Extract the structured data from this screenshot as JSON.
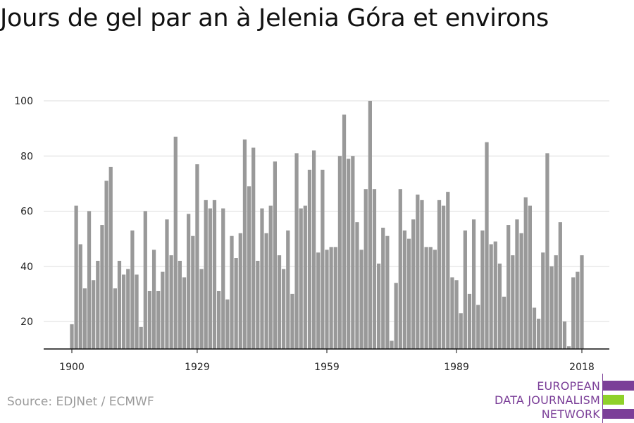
{
  "title": "Jours de gel par an à Jelenia Góra et environs",
  "source": "Source: EDJNet / ECMWF",
  "logo": {
    "lines": [
      "EUROPEAN",
      "DATA JOURNALISM",
      "NETWORK"
    ],
    "colors": {
      "purple": "#7b3f98",
      "green": "#8fd12a"
    }
  },
  "chart_data": {
    "type": "bar",
    "title": "Jours de gel par an à Jelenia Góra et environs",
    "xlabel": "",
    "ylabel": "",
    "bar_color": "#999999",
    "x_start": 1900,
    "x_ticks": [
      1900,
      1929,
      1959,
      1989,
      2018
    ],
    "y_ticks": [
      20,
      40,
      60,
      80,
      100
    ],
    "ylim": [
      10,
      100
    ],
    "grid": true,
    "values": [
      19,
      62,
      48,
      32,
      60,
      35,
      42,
      55,
      71,
      76,
      32,
      42,
      37,
      39,
      53,
      37,
      18,
      60,
      31,
      46,
      31,
      38,
      57,
      44,
      87,
      42,
      36,
      59,
      51,
      77,
      39,
      64,
      61,
      64,
      31,
      61,
      28,
      51,
      43,
      52,
      86,
      69,
      83,
      42,
      61,
      52,
      62,
      78,
      44,
      39,
      53,
      30,
      81,
      61,
      62,
      75,
      82,
      45,
      75,
      46,
      47,
      47,
      80,
      95,
      79,
      80,
      56,
      46,
      68,
      100,
      68,
      41,
      54,
      51,
      13,
      34,
      68,
      53,
      50,
      57,
      66,
      64,
      47,
      47,
      46,
      64,
      62,
      67,
      36,
      35,
      23,
      53,
      30,
      57,
      26,
      53,
      85,
      48,
      49,
      41,
      29,
      55,
      44,
      57,
      52,
      65,
      62,
      25,
      21,
      45,
      81,
      40,
      44,
      56,
      20,
      11,
      36,
      38,
      44
    ]
  }
}
